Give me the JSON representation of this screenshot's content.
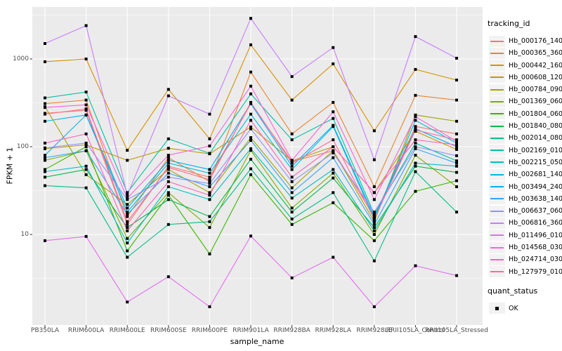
{
  "figure": {
    "y_axis_title": "FPKM + 1",
    "x_axis_title": "sample_name"
  },
  "legend": {
    "tracking_title": "tracking_id",
    "quant_title": "quant_status",
    "quant_ok_label": "OK"
  },
  "colors": {
    "panel_bg": "#EBEBEB",
    "grid": "#FFFFFF",
    "tick_mark": "#333333",
    "tick_label": "#4D4D4D",
    "legend_key_bg": "#F2F2F2",
    "point": "#000000"
  },
  "chart_data": {
    "type": "line",
    "title": "",
    "xlabel": "sample_name",
    "ylabel": "FPKM + 1",
    "y_scale": "log10",
    "yticks": [
      10,
      100,
      1000
    ],
    "ytick_labels": [
      "10",
      "100",
      "1000"
    ],
    "minor_gridlines_log10": [
      0.5,
      1.5,
      2.5,
      3.5
    ],
    "ylim": [
      0.9,
      3850
    ],
    "grid": true,
    "legend_position": "right",
    "point_marker": "small black square (quant_status OK)",
    "categories": [
      "PB350LA",
      "RRIM600LA",
      "RRIM600LE",
      "RRIM600SE",
      "RRIM600PE",
      "RRIM901LA",
      "RRIM928BA",
      "RRIM928LA",
      "RRIM928LE",
      "RRII105LA_Control",
      "RRII105LA_Stressed"
    ],
    "series": [
      {
        "name": "Hb_000176_140",
        "color": "#F8766D",
        "values": [
          240,
          260,
          13,
          60,
          45,
          310,
          68,
          90,
          16,
          170,
          140
        ]
      },
      {
        "name": "Hb_000365_360",
        "color": "#EA8331",
        "values": [
          310,
          340,
          16,
          75,
          40,
          710,
          140,
          320,
          35,
          385,
          340
        ]
      },
      {
        "name": "Hb_000442_160",
        "color": "#D89000",
        "values": [
          930,
          1000,
          91,
          450,
          123,
          1450,
          340,
          880,
          152,
          760,
          575
        ]
      },
      {
        "name": "Hb_000608_120",
        "color": "#C09B00",
        "values": [
          95,
          105,
          70,
          96,
          83,
          168,
          69,
          100,
          30,
          150,
          93
        ]
      },
      {
        "name": "Hb_000784_090",
        "color": "#A3A500",
        "values": [
          285,
          48,
          22,
          55,
          30,
          127,
          34,
          90,
          14,
          230,
          195
        ]
      },
      {
        "name": "Hb_001369_060",
        "color": "#7CAE00",
        "values": [
          70,
          90,
          9,
          30,
          12,
          91,
          20,
          50,
          10,
          80,
          35
        ]
      },
      {
        "name": "Hb_001804_060",
        "color": "#39B600",
        "values": [
          55,
          100,
          6.5,
          28,
          6,
          48,
          13,
          23,
          8.5,
          31,
          41
        ]
      },
      {
        "name": "Hb_001840_080",
        "color": "#00BB4E",
        "values": [
          45,
          55,
          12,
          25,
          16,
          72,
          18,
          44,
          12,
          60,
          51
        ]
      },
      {
        "name": "Hb_002014_080",
        "color": "#00C087",
        "values": [
          36,
          34,
          5.5,
          13,
          14,
          56,
          15,
          30,
          5,
          52,
          18
        ]
      },
      {
        "name": "Hb_002169_010",
        "color": "#00C1A3",
        "values": [
          360,
          420,
          30,
          123,
          84,
          400,
          120,
          210,
          17,
          110,
          69
        ]
      },
      {
        "name": "Hb_002215_050",
        "color": "#00BFC4",
        "values": [
          52,
          60,
          8,
          35,
          25,
          95,
          26,
          55,
          11,
          65,
          60
        ]
      },
      {
        "name": "Hb_002681_140",
        "color": "#00BAE0",
        "values": [
          195,
          230,
          18,
          65,
          50,
          235,
          55,
          170,
          15,
          200,
          110
        ]
      },
      {
        "name": "Hb_003494_240",
        "color": "#00B0F6",
        "values": [
          80,
          230,
          20,
          70,
          55,
          310,
          60,
          175,
          16,
          160,
          100
        ]
      },
      {
        "name": "Hb_003638_140",
        "color": "#35A2FF",
        "values": [
          75,
          90,
          17,
          50,
          35,
          118,
          30,
          75,
          13,
          95,
          65
        ]
      },
      {
        "name": "Hb_006637_060",
        "color": "#9590FF",
        "values": [
          97,
          110,
          25,
          45,
          38,
          160,
          40,
          85,
          18,
          100,
          79
        ]
      },
      {
        "name": "Hb_006816_360",
        "color": "#C77CFF",
        "values": [
          1500,
          2400,
          28,
          380,
          235,
          2900,
          630,
          1350,
          71,
          1800,
          1020
        ]
      },
      {
        "name": "Hb_011496_010",
        "color": "#E76BF3",
        "values": [
          8.5,
          9.5,
          1.7,
          3.3,
          1.5,
          9.6,
          3.2,
          5.5,
          1.5,
          4.4,
          3.4
        ]
      },
      {
        "name": "Hb_014568_030",
        "color": "#FA62DB",
        "values": [
          280,
          300,
          26,
          80,
          102,
          490,
          70,
          250,
          25,
          220,
          115
        ]
      },
      {
        "name": "Hb_024714_030",
        "color": "#FF62BC",
        "values": [
          110,
          140,
          11,
          40,
          28,
          200,
          45,
          100,
          30,
          120,
          105
        ]
      },
      {
        "name": "Hb_127979_010",
        "color": "#FF6A98",
        "values": [
          235,
          270,
          14,
          58,
          42,
          320,
          65,
          120,
          15,
          155,
          120
        ]
      }
    ],
    "quant_status_values": [
      "OK"
    ]
  }
}
